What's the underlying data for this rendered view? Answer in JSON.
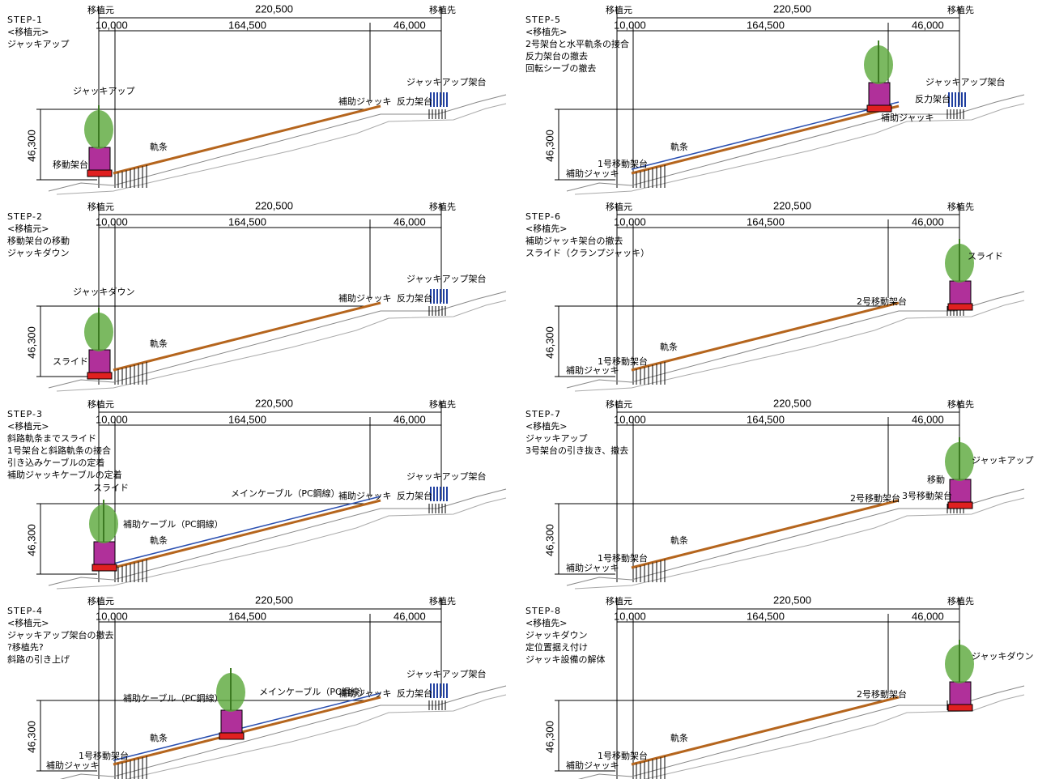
{
  "dimensions": {
    "origin": "移植元",
    "destination": "移植先",
    "total": "220,500",
    "left": "10,000",
    "middle": "164,500",
    "right": "46,000",
    "height": "46,300"
  },
  "panels": [
    {
      "steps": [
        "STEP-1",
        "<移植元>",
        "ジャッキアップ"
      ],
      "labels": [
        "ジャッキアップ",
        "軌条",
        "移動架台",
        "補助ジャッキ",
        "反力架台",
        "ジャッキアップ架台"
      ]
    },
    {
      "steps": [
        "STEP-2",
        "<移植元>",
        "移動架台の移動",
        "ジャッキダウン"
      ],
      "labels": [
        "ジャッキダウン",
        "軌条",
        "スライド",
        "補助ジャッキ",
        "反力架台",
        "ジャッキアップ架台"
      ]
    },
    {
      "steps": [
        "STEP-3",
        "<移植元>",
        "斜路軌条までスライド",
        "1号架台と斜路軌条の接合",
        "引き込みケーブルの定着",
        "補助ジャッキケーブルの定着"
      ],
      "labels": [
        "スライド",
        "メインケーブル（PC鋼線）",
        "補助ジャッキ",
        "反力架台",
        "ジャッキアップ架台",
        "補助ケーブル（PC鋼線）",
        "軌条"
      ]
    },
    {
      "steps": [
        "STEP-4",
        "<移植元>",
        "ジャッキアップ架台の撤去",
        "?移植先?",
        "斜路の引き上げ"
      ],
      "labels": [
        "メインケーブル（PC鋼線）",
        "補助ジャッキ",
        "反力架台",
        "ジャッキアップ架台",
        "補助ケーブル（PC鋼線）",
        "軌条",
        "1号移動架台",
        "補助ジャッキ"
      ]
    },
    {
      "steps": [
        "STEP-5",
        "<移植先>",
        "2号架台と水平軌条の接合",
        "反力架台の撤去",
        "回転シーブの撤去"
      ],
      "labels": [
        "ジャッキアップ架台",
        "反力架台",
        "補助ジャッキ",
        "軌条",
        "1号移動架台",
        "補助ジャッキ"
      ]
    },
    {
      "steps": [
        "STEP-6",
        "<移植先>",
        "補助ジャッキ架台の撤去",
        "スライド（クランプジャッキ）"
      ],
      "labels": [
        "スライド",
        "2号移動架台",
        "軌条",
        "1号移動架台",
        "補助ジャッキ"
      ]
    },
    {
      "steps": [
        "STEP-7",
        "<移植先>",
        "ジャッキアップ",
        "3号架台の引き抜き、撤去"
      ],
      "labels": [
        "ジャッキアップ",
        "移動",
        "2号移動架台",
        "3号移動架台",
        "軌条",
        "1号移動架台",
        "補助ジャッキ"
      ]
    },
    {
      "steps": [
        "STEP-8",
        "<移植先>",
        "ジャッキダウン",
        "定位置据え付け",
        "ジャッキ設備の解体"
      ],
      "labels": [
        "ジャッキダウン",
        "2号移動架台",
        "軌条",
        "1号移動架台",
        "補助ジャッキ"
      ]
    }
  ]
}
